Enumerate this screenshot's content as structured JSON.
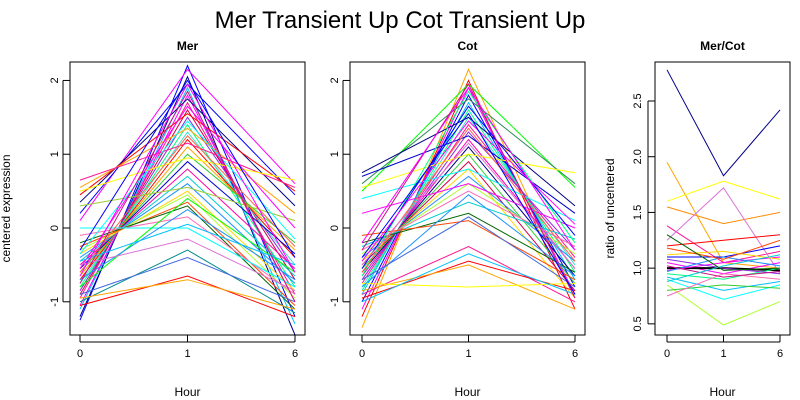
{
  "figure": {
    "title": "Mer Transient Up Cot Transient Up"
  },
  "chart_data": [
    {
      "type": "line",
      "title": "Mer",
      "xlabel": "Hour",
      "ylabel": "centered expression",
      "x": [
        0,
        1,
        6
      ],
      "x_tick_labels": [
        "0",
        "1",
        "6"
      ],
      "y_ticks": [
        -1,
        0,
        1,
        2
      ],
      "ylim": [
        -1.45,
        2.25
      ],
      "grid": false,
      "series": [
        {
          "values": [
            -1.25,
            2.2,
            -1.2
          ],
          "color": "#0000ff"
        },
        {
          "values": [
            -1.2,
            2.05,
            -1.45
          ],
          "color": "#00008b"
        },
        {
          "values": [
            -1.1,
            1.9,
            -1.3
          ],
          "color": "#00bfff"
        },
        {
          "values": [
            -1.05,
            1.8,
            -1.0
          ],
          "color": "#ff00ff"
        },
        {
          "values": [
            -0.95,
            1.7,
            -0.9
          ],
          "color": "#ff1493"
        },
        {
          "values": [
            -0.9,
            1.6,
            -0.7
          ],
          "color": "#d2004b"
        },
        {
          "values": [
            -0.85,
            1.5,
            -0.6
          ],
          "color": "#8a2be2"
        },
        {
          "values": [
            -0.8,
            1.4,
            -0.8
          ],
          "color": "#00ff7f"
        },
        {
          "values": [
            -0.75,
            1.3,
            -0.5
          ],
          "color": "#40e0d0"
        },
        {
          "values": [
            -0.7,
            1.2,
            -0.4
          ],
          "color": "#ff0000"
        },
        {
          "values": [
            -0.65,
            1.1,
            -0.3
          ],
          "color": "#ffa500"
        },
        {
          "values": [
            -0.6,
            1.0,
            -0.2
          ],
          "color": "#32cd32"
        },
        {
          "values": [
            -0.55,
            0.9,
            -0.35
          ],
          "color": "#0000cd"
        },
        {
          "values": [
            -0.5,
            0.8,
            -0.55
          ],
          "color": "#ff00aa"
        },
        {
          "values": [
            -0.45,
            0.7,
            -0.65
          ],
          "color": "#00ced1"
        },
        {
          "values": [
            -0.4,
            0.6,
            -0.75
          ],
          "color": "#1e90ff"
        },
        {
          "values": [
            -0.35,
            0.5,
            -0.85
          ],
          "color": "#ffd700"
        },
        {
          "values": [
            -0.3,
            0.45,
            -0.95
          ],
          "color": "#adff2f"
        },
        {
          "values": [
            -0.25,
            0.35,
            -1.05
          ],
          "color": "#ff4500"
        },
        {
          "values": [
            -0.2,
            0.3,
            -1.1
          ],
          "color": "#006400"
        },
        {
          "values": [
            -0.1,
            0.15,
            -0.9
          ],
          "color": "#ff69b4"
        },
        {
          "values": [
            0.0,
            0.0,
            -0.8
          ],
          "color": "#00ffff"
        },
        {
          "values": [
            -1.0,
            -0.3,
            -1.15
          ],
          "color": "#008b8b"
        },
        {
          "values": [
            -0.9,
            -0.4,
            -1.0
          ],
          "color": "#4169e1"
        },
        {
          "values": [
            -1.05,
            -0.65,
            -1.2
          ],
          "color": "#ff0000"
        },
        {
          "values": [
            -0.95,
            -0.7,
            -1.1
          ],
          "color": "#ffa500"
        },
        {
          "values": [
            0.1,
            2.15,
            0.6
          ],
          "color": "#ff00ff"
        },
        {
          "values": [
            0.2,
            1.95,
            0.45
          ],
          "color": "#0000ff"
        },
        {
          "values": [
            0.35,
            1.75,
            0.3
          ],
          "color": "#000080"
        },
        {
          "values": [
            0.45,
            1.55,
            0.5
          ],
          "color": "#ff0000"
        },
        {
          "values": [
            0.55,
            1.35,
            0.2
          ],
          "color": "#ffa500"
        },
        {
          "values": [
            0.65,
            1.15,
            0.55
          ],
          "color": "#ff1493"
        },
        {
          "values": [
            0.5,
            0.95,
            0.65
          ],
          "color": "#ffff00"
        },
        {
          "values": [
            0.3,
            0.55,
            0.1
          ],
          "color": "#9acd32"
        },
        {
          "values": [
            -0.55,
            1.65,
            0.0
          ],
          "color": "#ff00ff"
        },
        {
          "values": [
            -0.35,
            1.45,
            -0.15
          ],
          "color": "#00ffff"
        },
        {
          "values": [
            -0.6,
            1.25,
            -0.25
          ],
          "color": "#ff6347"
        },
        {
          "values": [
            -0.8,
            0.4,
            -0.6
          ],
          "color": "#00ff00"
        },
        {
          "values": [
            -0.7,
            0.25,
            -0.7
          ],
          "color": "#1e90ff"
        },
        {
          "values": [
            -0.5,
            -0.15,
            -0.85
          ],
          "color": "#da70d6"
        },
        {
          "values": [
            -0.45,
            0.05,
            -0.5
          ],
          "color": "#00bfff"
        },
        {
          "values": [
            -0.75,
            1.85,
            -1.0
          ],
          "color": "#c71585"
        },
        {
          "values": [
            -0.65,
            1.95,
            -0.6
          ],
          "color": "#ff00ff"
        },
        {
          "values": [
            -0.3,
            2.0,
            -0.4
          ],
          "color": "#0000ff"
        }
      ]
    },
    {
      "type": "line",
      "title": "Cot",
      "xlabel": "Hour",
      "ylabel": "",
      "x": [
        0,
        1,
        6
      ],
      "x_tick_labels": [
        "0",
        "1",
        "6"
      ],
      "y_ticks": [
        -1,
        0,
        1,
        2
      ],
      "ylim": [
        -1.45,
        2.25
      ],
      "grid": false,
      "series": [
        {
          "values": [
            -1.35,
            2.15,
            -0.95
          ],
          "color": "#ffa500"
        },
        {
          "values": [
            -1.2,
            2.0,
            -1.1
          ],
          "color": "#ff0000"
        },
        {
          "values": [
            -1.1,
            1.9,
            -0.9
          ],
          "color": "#ff00ff"
        },
        {
          "values": [
            -1.0,
            1.8,
            -0.8
          ],
          "color": "#0000ff"
        },
        {
          "values": [
            -0.9,
            1.7,
            -0.7
          ],
          "color": "#00bfff"
        },
        {
          "values": [
            -0.85,
            1.6,
            -0.6
          ],
          "color": "#00ff7f"
        },
        {
          "values": [
            -0.8,
            1.5,
            -0.5
          ],
          "color": "#40e0d0"
        },
        {
          "values": [
            -0.75,
            1.4,
            -0.4
          ],
          "color": "#ff1493"
        },
        {
          "values": [
            -0.7,
            1.3,
            -0.3
          ],
          "color": "#8a2be2"
        },
        {
          "values": [
            -0.65,
            1.2,
            -0.55
          ],
          "color": "#ff00aa"
        },
        {
          "values": [
            -0.6,
            1.1,
            -0.65
          ],
          "color": "#00008b"
        },
        {
          "values": [
            -0.55,
            1.0,
            -0.75
          ],
          "color": "#32cd32"
        },
        {
          "values": [
            -0.5,
            0.9,
            -0.85
          ],
          "color": "#d2004b"
        },
        {
          "values": [
            -0.45,
            0.8,
            -0.95
          ],
          "color": "#ffd700"
        },
        {
          "values": [
            -0.4,
            0.7,
            -0.45
          ],
          "color": "#1e90ff"
        },
        {
          "values": [
            -0.35,
            0.6,
            -0.35
          ],
          "color": "#adff2f"
        },
        {
          "values": [
            -0.3,
            0.5,
            -0.25
          ],
          "color": "#ff69b4"
        },
        {
          "values": [
            -0.25,
            0.35,
            -0.15
          ],
          "color": "#00ced1"
        },
        {
          "values": [
            -0.2,
            0.2,
            -0.6
          ],
          "color": "#006400"
        },
        {
          "values": [
            -0.1,
            0.1,
            -0.7
          ],
          "color": "#ff4500"
        },
        {
          "values": [
            0.5,
            1.95,
            0.55
          ],
          "color": "#00ff00"
        },
        {
          "values": [
            0.6,
            1.75,
            0.6
          ],
          "color": "#2e8b57"
        },
        {
          "values": [
            0.75,
            1.5,
            0.3
          ],
          "color": "#000080"
        },
        {
          "values": [
            0.7,
            1.25,
            0.2
          ],
          "color": "#0000cd"
        },
        {
          "values": [
            0.55,
            1.0,
            0.75
          ],
          "color": "#ffff00"
        },
        {
          "values": [
            0.4,
            0.8,
            0.1
          ],
          "color": "#00ffff"
        },
        {
          "values": [
            0.2,
            0.6,
            0.0
          ],
          "color": "#ff00ff"
        },
        {
          "values": [
            -0.9,
            -0.25,
            -1.0
          ],
          "color": "#ff1493"
        },
        {
          "values": [
            -0.95,
            -0.45,
            -0.85
          ],
          "color": "#ff0000"
        },
        {
          "values": [
            -0.85,
            -0.5,
            -1.1
          ],
          "color": "#ffa500"
        },
        {
          "values": [
            -0.75,
            -0.8,
            -0.75
          ],
          "color": "#ffff00"
        },
        {
          "values": [
            -1.0,
            -0.35,
            -0.9
          ],
          "color": "#00bfff"
        },
        {
          "values": [
            -0.65,
            1.85,
            -0.2
          ],
          "color": "#00ff7f"
        },
        {
          "values": [
            -0.55,
            1.65,
            -0.1
          ],
          "color": "#0000ff"
        },
        {
          "values": [
            -0.45,
            1.45,
            0.05
          ],
          "color": "#ff00ff"
        },
        {
          "values": [
            -0.6,
            1.35,
            -0.45
          ],
          "color": "#ff6347"
        },
        {
          "values": [
            -0.5,
            1.15,
            -0.55
          ],
          "color": "#da70d6"
        },
        {
          "values": [
            -0.8,
            0.45,
            -0.65
          ],
          "color": "#1e90ff"
        },
        {
          "values": [
            -0.7,
            0.15,
            -0.8
          ],
          "color": "#4169e1"
        },
        {
          "values": [
            -0.3,
            1.95,
            -0.95
          ],
          "color": "#c71585"
        },
        {
          "values": [
            -0.2,
            1.9,
            -0.3
          ],
          "color": "#ff00ff"
        },
        {
          "values": [
            -0.4,
            1.55,
            -0.9
          ],
          "color": "#0000ff"
        }
      ]
    },
    {
      "type": "line",
      "title": "Mer/Cot",
      "xlabel": "Hour",
      "ylabel": "ratio of uncentered",
      "x": [
        0,
        1,
        6
      ],
      "x_tick_labels": [
        "0",
        "1",
        "6"
      ],
      "y_ticks": [
        0.5,
        1.0,
        1.5,
        2.0,
        2.5
      ],
      "y_tick_labels": [
        "0.5",
        "1.0",
        "1.5",
        "2.0",
        "2.5"
      ],
      "ylim": [
        0.4,
        2.85
      ],
      "grid": false,
      "series": [
        {
          "values": [
            2.78,
            1.83,
            2.42
          ],
          "color": "#00008b"
        },
        {
          "values": [
            1.95,
            1.05,
            1.0
          ],
          "color": "#ffa500"
        },
        {
          "values": [
            1.6,
            1.78,
            1.62
          ],
          "color": "#ffff00"
        },
        {
          "values": [
            1.55,
            1.4,
            1.5
          ],
          "color": "#ff8c00"
        },
        {
          "values": [
            1.38,
            1.05,
            1.15
          ],
          "color": "#ff1493"
        },
        {
          "values": [
            1.25,
            1.72,
            0.95
          ],
          "color": "#da70d6"
        },
        {
          "values": [
            1.2,
            1.25,
            1.3
          ],
          "color": "#ff0000"
        },
        {
          "values": [
            1.1,
            1.1,
            1.2
          ],
          "color": "#0000ff"
        },
        {
          "values": [
            1.05,
            0.95,
            1.05
          ],
          "color": "#ff00ff"
        },
        {
          "values": [
            1.0,
            1.0,
            0.98
          ],
          "color": "#000000",
          "width": 2
        },
        {
          "values": [
            0.98,
            1.05,
            1.1
          ],
          "color": "#ff00ff"
        },
        {
          "values": [
            0.95,
            0.9,
            1.0
          ],
          "color": "#00ff7f"
        },
        {
          "values": [
            0.92,
            0.8,
            0.88
          ],
          "color": "#00bfff"
        },
        {
          "values": [
            0.9,
            0.72,
            0.85
          ],
          "color": "#00ffff"
        },
        {
          "values": [
            0.85,
            0.49,
            0.7
          ],
          "color": "#adff2f"
        },
        {
          "values": [
            0.8,
            0.85,
            0.82
          ],
          "color": "#32cd32"
        },
        {
          "values": [
            0.75,
            0.95,
            0.9
          ],
          "color": "#ff69b4"
        },
        {
          "values": [
            1.12,
            1.15,
            1.08
          ],
          "color": "#ffd700"
        },
        {
          "values": [
            1.08,
            1.0,
            0.95
          ],
          "color": "#8a2be2"
        },
        {
          "values": [
            0.97,
            1.1,
            1.02
          ],
          "color": "#1e90ff"
        },
        {
          "values": [
            1.02,
            0.92,
            0.97
          ],
          "color": "#c71585"
        },
        {
          "values": [
            0.88,
            1.02,
            1.12
          ],
          "color": "#00ced1"
        },
        {
          "values": [
            1.18,
            1.08,
            1.25
          ],
          "color": "#ff4500"
        },
        {
          "values": [
            1.3,
            0.98,
            1.0
          ],
          "color": "#006400"
        }
      ]
    }
  ]
}
